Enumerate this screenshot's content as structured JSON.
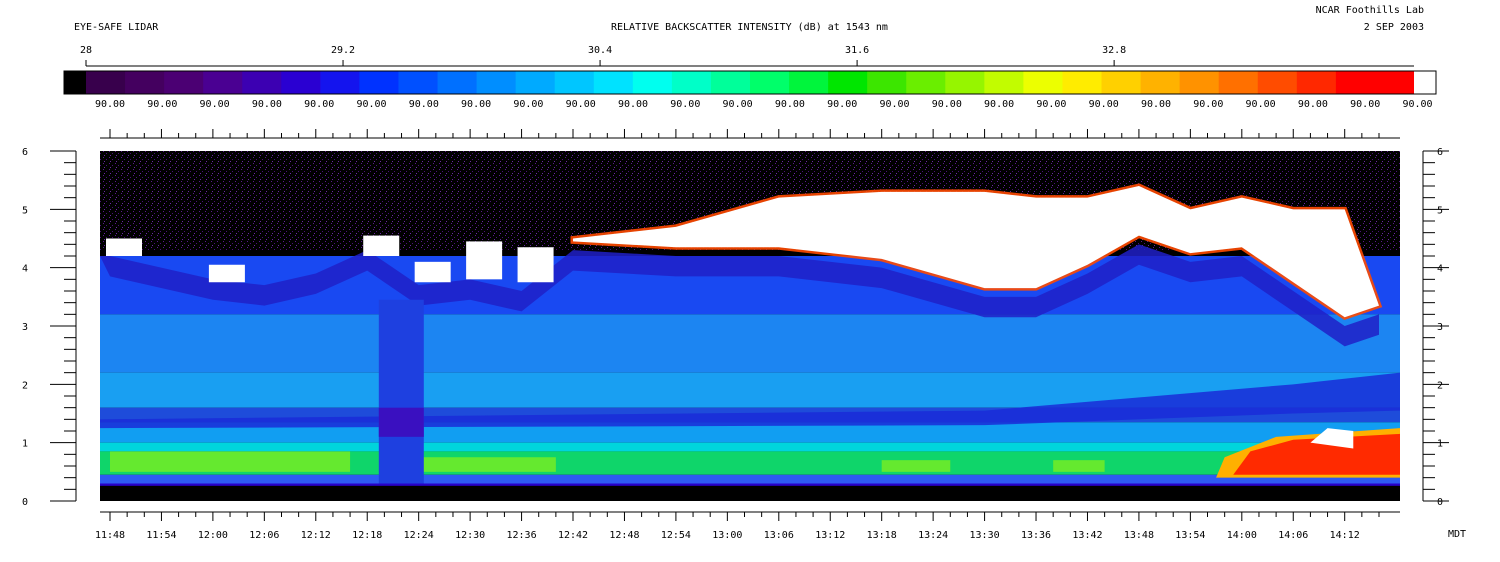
{
  "chart_data": {
    "type": "heatmap",
    "title": "EYE-SAFE LIDAR",
    "colorbar_title": "RELATIVE BACKSCATTER INTENSITY (dB) at 1543 nm",
    "institution": "NCAR Foothills Lab",
    "date": "2 SEP 2003",
    "time_zone": "MDT",
    "colorbar_ticks": [
      "28",
      "29.2",
      "30.4",
      "31.6",
      "32.8"
    ],
    "colorbar_range": [
      28,
      34.2
    ],
    "colorbar_sublabels": [
      "90.00",
      "90.00",
      "90.00",
      "90.00",
      "90.00",
      "90.00",
      "90.00",
      "90.00",
      "90.00",
      "90.00",
      "90.00",
      "90.00",
      "90.00",
      "90.00",
      "90.00",
      "90.00",
      "90.00",
      "90.00",
      "90.00",
      "90.00",
      "90.00",
      "90.00",
      "90.00",
      "90.00",
      "90.00",
      "90.00"
    ],
    "colorbar_colors": [
      "#000000",
      "#38004c",
      "#44005f",
      "#4b0073",
      "#4a0092",
      "#3c00b2",
      "#2a00d2",
      "#1414ee",
      "#0032ff",
      "#0050ff",
      "#0070ff",
      "#008eff",
      "#00aaff",
      "#00c6ff",
      "#00e2ff",
      "#00ffef",
      "#00ffc8",
      "#00ff9a",
      "#00ff6a",
      "#00f53c",
      "#00e600",
      "#3ce600",
      "#6aee00",
      "#96f500",
      "#c2fc00",
      "#ecff00",
      "#ffec00",
      "#ffd000",
      "#ffb200",
      "#ff9200",
      "#ff7000",
      "#ff4c00",
      "#ff2800",
      "#ff0000",
      "#ff0000",
      "#ffffff"
    ],
    "ylim": [
      0,
      6
    ],
    "yticks": [
      "0",
      "1",
      "2",
      "3",
      "4",
      "5",
      "6"
    ],
    "xticks": [
      "11:48",
      "11:54",
      "12:00",
      "12:06",
      "12:12",
      "12:18",
      "12:24",
      "12:30",
      "12:36",
      "12:42",
      "12:48",
      "12:54",
      "13:00",
      "13:06",
      "13:12",
      "13:18",
      "13:24",
      "13:30",
      "13:36",
      "13:42",
      "13:48",
      "13:54",
      "14:00",
      "14:06",
      "14:12"
    ],
    "x_range": [
      "11:48",
      "14:16"
    ],
    "features": {
      "cloud_base_km": [
        {
          "time": "11:48",
          "height": 4.2
        },
        {
          "time": "12:00",
          "height": 3.8
        },
        {
          "time": "12:06",
          "height": 3.7
        },
        {
          "time": "12:12",
          "height": 3.9
        },
        {
          "time": "12:18",
          "height": 4.3
        },
        {
          "time": "12:24",
          "height": 3.7
        },
        {
          "time": "12:30",
          "height": 3.8
        },
        {
          "time": "12:36",
          "height": 3.6
        },
        {
          "time": "12:42",
          "height": 4.3
        },
        {
          "time": "12:54",
          "height": 4.2
        },
        {
          "time": "13:06",
          "height": 4.2
        },
        {
          "time": "13:18",
          "height": 4.0
        },
        {
          "time": "13:30",
          "height": 3.5
        },
        {
          "time": "13:36",
          "height": 3.5
        },
        {
          "time": "13:42",
          "height": 3.9
        },
        {
          "time": "13:48",
          "height": 4.4
        },
        {
          "time": "13:54",
          "height": 4.1
        },
        {
          "time": "14:00",
          "height": 4.2
        },
        {
          "time": "14:06",
          "height": 3.6
        },
        {
          "time": "14:12",
          "height": 3.0
        },
        {
          "time": "14:16",
          "height": 3.2
        }
      ],
      "cloud_top_km": [
        {
          "time": "12:42",
          "height": 4.5
        },
        {
          "time": "12:54",
          "height": 4.7
        },
        {
          "time": "13:06",
          "height": 5.2
        },
        {
          "time": "13:18",
          "height": 5.3
        },
        {
          "time": "13:30",
          "height": 5.3
        },
        {
          "time": "13:36",
          "height": 5.2
        },
        {
          "time": "13:42",
          "height": 5.2
        },
        {
          "time": "13:48",
          "height": 5.4
        },
        {
          "time": "13:54",
          "height": 5.0
        },
        {
          "time": "14:00",
          "height": 5.2
        },
        {
          "time": "14:06",
          "height": 5.0
        },
        {
          "time": "14:12",
          "height": 5.0
        }
      ],
      "aerosol_layer_km": [
        1.0,
        1.4
      ],
      "surface_blank_km": [
        0,
        0.25
      ]
    }
  }
}
